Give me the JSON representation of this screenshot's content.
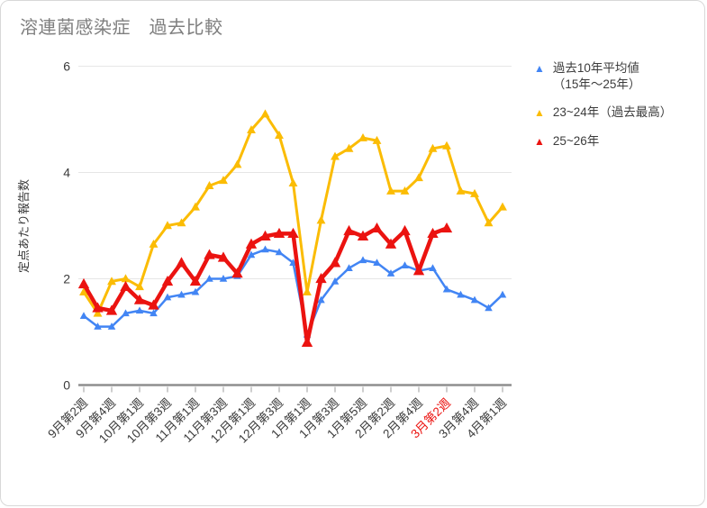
{
  "chart_data": {
    "type": "line",
    "title": "溶連菌感染症　過去比較",
    "ylabel": "定点あたり報告数",
    "xlabel": "",
    "ylim": [
      0,
      6
    ],
    "yticks": [
      0,
      2,
      4,
      6
    ],
    "grid": true,
    "legend_position": "right",
    "n_points": 31,
    "x_label_every": 2,
    "x_tick_labels": [
      "9月第2週",
      "9月第4週",
      "10月第1週",
      "10月第3週",
      "11月第1週",
      "11月第3週",
      "12月第1週",
      "12月第3週",
      "1月第1週",
      "1月第3週",
      "1月第5週",
      "2月第2週",
      "2月第4週",
      "3月第2週",
      "3月第4週",
      "4月第1週"
    ],
    "highlighted_label_index": 13,
    "highlight_color": "#eb1310",
    "series": [
      {
        "name": "過去10年平均値（15年～25年）",
        "color": "#4285f4",
        "marker": "triangle-up",
        "values": [
          1.3,
          1.1,
          1.1,
          1.35,
          1.4,
          1.35,
          1.65,
          1.7,
          1.75,
          2.0,
          2.0,
          2.05,
          2.45,
          2.55,
          2.5,
          2.3,
          0.95,
          1.6,
          1.95,
          2.2,
          2.35,
          2.3,
          2.1,
          2.25,
          2.15,
          2.2,
          1.8,
          1.7,
          1.6,
          1.45,
          1.7
        ]
      },
      {
        "name": "23~24年（過去最高）",
        "color": "#fbbc04",
        "marker": "triangle-up",
        "values": [
          1.75,
          1.35,
          1.95,
          2.0,
          1.85,
          2.65,
          3.0,
          3.05,
          3.35,
          3.75,
          3.85,
          4.15,
          4.8,
          5.1,
          4.7,
          3.8,
          1.75,
          3.1,
          4.3,
          4.45,
          4.65,
          4.6,
          3.65,
          3.65,
          3.9,
          4.45,
          4.5,
          3.65,
          3.6,
          3.05,
          3.35
        ]
      },
      {
        "name": "25~26年",
        "color": "#eb1310",
        "marker": "triangle-up",
        "values": [
          1.9,
          1.45,
          1.4,
          1.85,
          1.6,
          1.5,
          1.95,
          2.3,
          1.95,
          2.45,
          2.4,
          2.1,
          2.65,
          2.8,
          2.85,
          2.85,
          0.8,
          2.0,
          2.3,
          2.9,
          2.8,
          2.95,
          2.65,
          2.9,
          2.15,
          2.85,
          2.95
        ]
      }
    ]
  },
  "legend": {
    "items": [
      {
        "label": "過去10年平均値",
        "label2": "（15年～25年）",
        "color": "#4285f4"
      },
      {
        "label": "23~24年（過去最高）",
        "label2": "",
        "color": "#fbbc04"
      },
      {
        "label": "25~26年",
        "label2": "",
        "color": "#eb1310"
      }
    ]
  },
  "axes": {
    "y_tick_labels": [
      "0",
      "2",
      "4",
      "6"
    ],
    "y_title": "定点あたり報告数"
  }
}
